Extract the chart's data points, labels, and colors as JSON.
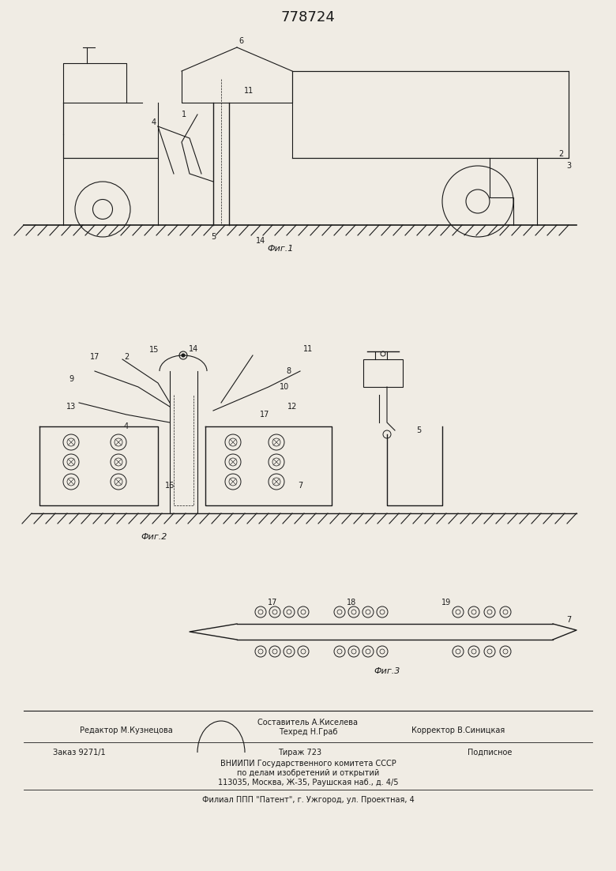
{
  "title": "778724",
  "fig1_label": "Фиг.1",
  "fig2_label": "Фиг.2",
  "fig3_label": "Фиг.3",
  "footer_line1_left": "Редактор М.Кузнецова",
  "footer_line1_center": "Составитель А.Киселева",
  "footer_line1_right": "Корректор В.Синицкая",
  "footer_line2_center": "Техред Н.Граб",
  "footer_line3_left": "Заказ 9271/1",
  "footer_line3_center": "Тираж 723",
  "footer_line3_right": "Подписное",
  "footer_line4": "ВНИИПИ Государственного комитета СССР",
  "footer_line5": "по делам изобретений и открытий",
  "footer_line6": "113035, Москва, Ж-35, Раушская наб., д. 4/5",
  "footer_line7": "Филиал ППП \"Патент\", г. Ужгород, ул. Проектная, 4",
  "bg_color": "#f0ece4",
  "line_color": "#1a1a1a",
  "font_size_title": 13,
  "font_size_label": 8,
  "font_size_footer": 7
}
